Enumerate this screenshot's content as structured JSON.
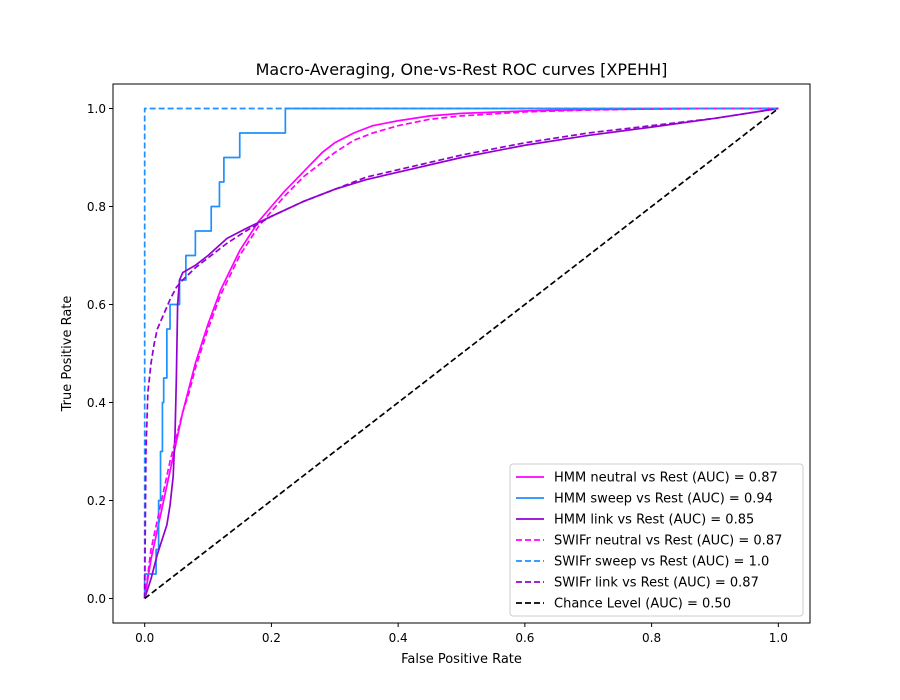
{
  "chart_data": {
    "type": "line",
    "title": "Macro-Averaging, One-vs-Rest ROC curves [XPEHH]",
    "xlabel": "False Positive Rate",
    "ylabel": "True Positive Rate",
    "xlim": [
      -0.05,
      1.05
    ],
    "ylim": [
      -0.05,
      1.05
    ],
    "xticks": [
      0.0,
      0.2,
      0.4,
      0.6,
      0.8,
      1.0
    ],
    "yticks": [
      0.0,
      0.2,
      0.4,
      0.6,
      0.8,
      1.0
    ],
    "xtick_labels": [
      "0.0",
      "0.2",
      "0.4",
      "0.6",
      "0.8",
      "1.0"
    ],
    "ytick_labels": [
      "0.0",
      "0.2",
      "0.4",
      "0.6",
      "0.8",
      "1.0"
    ],
    "grid": false,
    "legend_position": "bottom-right",
    "series": [
      {
        "name": "HMM neutral vs Rest (AUC) = 0.87",
        "color": "#ff00ff",
        "dash": "solid",
        "x": [
          0.0,
          0.005,
          0.01,
          0.02,
          0.03,
          0.04,
          0.05,
          0.06,
          0.07,
          0.08,
          0.1,
          0.12,
          0.15,
          0.18,
          0.2,
          0.22,
          0.25,
          0.28,
          0.3,
          0.33,
          0.36,
          0.4,
          0.45,
          0.5,
          0.6,
          0.7,
          0.8,
          0.9,
          1.0
        ],
        "y": [
          0.0,
          0.04,
          0.08,
          0.14,
          0.2,
          0.26,
          0.32,
          0.38,
          0.43,
          0.48,
          0.56,
          0.63,
          0.71,
          0.77,
          0.8,
          0.83,
          0.87,
          0.91,
          0.93,
          0.95,
          0.965,
          0.975,
          0.985,
          0.99,
          0.995,
          0.998,
          0.999,
          1.0,
          1.0
        ]
      },
      {
        "name": "HMM sweep vs Rest (AUC) = 0.94",
        "color": "#1e90ff",
        "dash": "solid",
        "x": [
          0.0,
          0.0,
          0.018,
          0.018,
          0.022,
          0.022,
          0.025,
          0.025,
          0.028,
          0.028,
          0.03,
          0.03,
          0.035,
          0.035,
          0.04,
          0.04,
          0.045,
          0.045,
          0.055,
          0.055,
          0.06,
          0.06,
          0.065,
          0.065,
          0.08,
          0.08,
          0.105,
          0.105,
          0.118,
          0.118,
          0.125,
          0.125,
          0.13,
          0.13,
          0.15,
          0.15,
          0.222,
          0.222,
          1.0
        ],
        "y": [
          0.0,
          0.05,
          0.05,
          0.1,
          0.1,
          0.2,
          0.2,
          0.3,
          0.3,
          0.4,
          0.4,
          0.45,
          0.45,
          0.55,
          0.55,
          0.6,
          0.6,
          0.6,
          0.6,
          0.65,
          0.65,
          0.65,
          0.65,
          0.7,
          0.7,
          0.75,
          0.75,
          0.8,
          0.8,
          0.85,
          0.85,
          0.9,
          0.9,
          0.9,
          0.9,
          0.95,
          0.95,
          1.0,
          1.0
        ]
      },
      {
        "name": "HMM link vs Rest (AUC) = 0.85",
        "color": "#9400d3",
        "dash": "solid",
        "x": [
          0.0,
          0.01,
          0.02,
          0.03,
          0.035,
          0.04,
          0.045,
          0.048,
          0.05,
          0.052,
          0.055,
          0.06,
          0.08,
          0.1,
          0.13,
          0.16,
          0.2,
          0.25,
          0.3,
          0.35,
          0.4,
          0.5,
          0.6,
          0.7,
          0.8,
          0.9,
          1.0
        ],
        "y": [
          0.0,
          0.04,
          0.09,
          0.13,
          0.15,
          0.19,
          0.25,
          0.34,
          0.45,
          0.6,
          0.65,
          0.665,
          0.68,
          0.7,
          0.735,
          0.755,
          0.78,
          0.81,
          0.835,
          0.855,
          0.87,
          0.9,
          0.925,
          0.945,
          0.962,
          0.98,
          1.0
        ]
      },
      {
        "name": "SWIFr neutral vs Rest (AUC) = 0.87",
        "color": "#ff00ff",
        "dash": "dashed",
        "x": [
          0.0,
          0.005,
          0.01,
          0.02,
          0.03,
          0.04,
          0.05,
          0.06,
          0.07,
          0.08,
          0.1,
          0.12,
          0.15,
          0.18,
          0.2,
          0.22,
          0.25,
          0.28,
          0.3,
          0.33,
          0.36,
          0.4,
          0.45,
          0.5,
          0.6,
          0.7,
          0.8,
          0.9,
          1.0
        ],
        "y": [
          0.0,
          0.05,
          0.1,
          0.16,
          0.22,
          0.28,
          0.33,
          0.38,
          0.42,
          0.47,
          0.55,
          0.62,
          0.7,
          0.76,
          0.79,
          0.82,
          0.86,
          0.89,
          0.91,
          0.935,
          0.95,
          0.965,
          0.978,
          0.985,
          0.993,
          0.997,
          0.999,
          1.0,
          1.0
        ]
      },
      {
        "name": "SWIFr sweep vs Rest (AUC) = 1.0",
        "color": "#1e90ff",
        "dash": "dashed",
        "x": [
          0.0,
          0.0,
          1.0
        ],
        "y": [
          0.0,
          1.0,
          1.0
        ]
      },
      {
        "name": "SWIFr link vs Rest (AUC) = 0.87",
        "color": "#9400d3",
        "dash": "dashed",
        "x": [
          0.0,
          0.002,
          0.005,
          0.01,
          0.015,
          0.02,
          0.03,
          0.04,
          0.05,
          0.06,
          0.08,
          0.1,
          0.13,
          0.16,
          0.2,
          0.25,
          0.3,
          0.35,
          0.4,
          0.5,
          0.6,
          0.7,
          0.8,
          0.9,
          1.0
        ],
        "y": [
          0.0,
          0.3,
          0.42,
          0.48,
          0.52,
          0.55,
          0.58,
          0.61,
          0.635,
          0.65,
          0.675,
          0.695,
          0.725,
          0.75,
          0.78,
          0.81,
          0.835,
          0.86,
          0.875,
          0.905,
          0.93,
          0.95,
          0.965,
          0.98,
          1.0
        ]
      },
      {
        "name": "Chance Level (AUC) = 0.50",
        "color": "#000000",
        "dash": "dashed",
        "x": [
          0.0,
          1.0
        ],
        "y": [
          0.0,
          1.0
        ]
      }
    ]
  }
}
